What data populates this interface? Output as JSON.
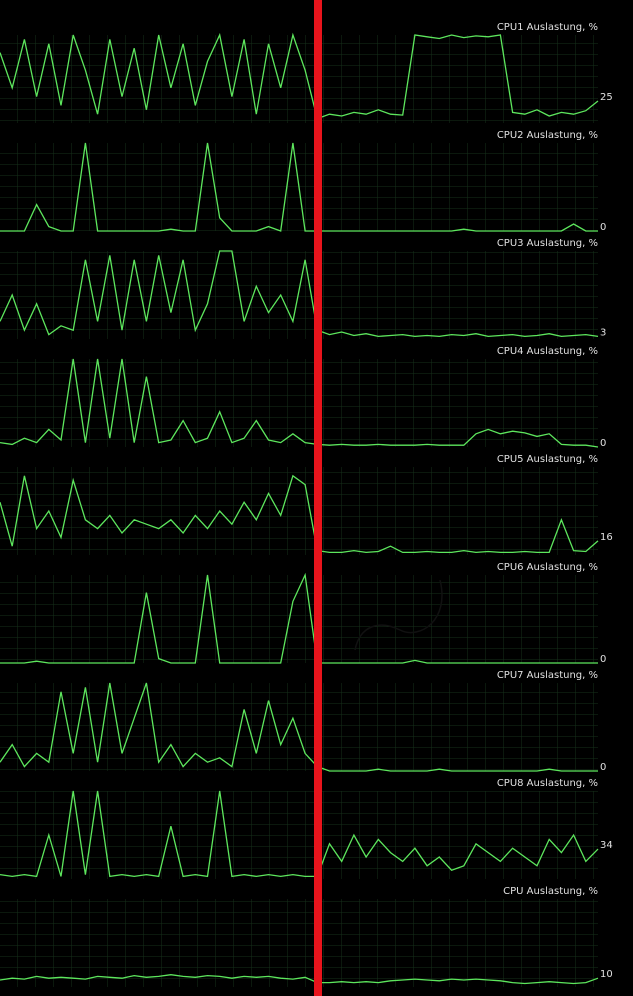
{
  "panels": [
    {
      "title": "CPU1 Auslastung, %",
      "value": 25,
      "trace": [
        80,
        40,
        95,
        30,
        90,
        20,
        100,
        60,
        10,
        95,
        30,
        85,
        15,
        100,
        40,
        90,
        20,
        70,
        100,
        30,
        95,
        10,
        90,
        40,
        100,
        60,
        5,
        10,
        8,
        12,
        10,
        15,
        10,
        9,
        100,
        98,
        96,
        100,
        97,
        99,
        98,
        100,
        12,
        10,
        15,
        8,
        12,
        10,
        14,
        25
      ]
    },
    {
      "title": "CPU2 Auslastung, %",
      "value": 0,
      "trace": [
        0,
        0,
        0,
        30,
        5,
        0,
        0,
        100,
        0,
        0,
        0,
        0,
        0,
        0,
        2,
        0,
        0,
        100,
        15,
        0,
        0,
        0,
        5,
        0,
        100,
        0,
        0,
        0,
        0,
        0,
        0,
        0,
        0,
        0,
        0,
        0,
        0,
        0,
        2,
        0,
        0,
        0,
        0,
        0,
        0,
        0,
        0,
        8,
        0,
        0
      ]
    },
    {
      "title": "CPU3 Auslastung, %",
      "value": 3,
      "trace": [
        20,
        50,
        10,
        40,
        5,
        15,
        10,
        90,
        20,
        95,
        10,
        90,
        20,
        95,
        30,
        90,
        10,
        40,
        100,
        100,
        20,
        60,
        30,
        50,
        20,
        90,
        10,
        5,
        8,
        4,
        6,
        3,
        4,
        5,
        3,
        4,
        3,
        5,
        4,
        6,
        3,
        4,
        5,
        3,
        4,
        6,
        3,
        4,
        5,
        3
      ]
    },
    {
      "title": "CPU4 Auslastung, %",
      "value": 0,
      "trace": [
        5,
        3,
        10,
        5,
        20,
        8,
        100,
        5,
        100,
        10,
        100,
        5,
        80,
        5,
        8,
        30,
        5,
        10,
        40,
        5,
        10,
        30,
        8,
        5,
        15,
        5,
        3,
        2,
        3,
        2,
        2,
        3,
        2,
        2,
        2,
        3,
        2,
        2,
        2,
        15,
        20,
        15,
        18,
        16,
        12,
        15,
        3,
        2,
        2,
        0
      ]
    },
    {
      "title": "CPU5 Auslastung, %",
      "value": 16,
      "trace": [
        60,
        10,
        90,
        30,
        50,
        20,
        85,
        40,
        30,
        45,
        25,
        40,
        35,
        30,
        40,
        25,
        45,
        30,
        50,
        35,
        60,
        40,
        70,
        45,
        90,
        80,
        5,
        3,
        3,
        5,
        3,
        4,
        10,
        3,
        3,
        4,
        3,
        3,
        5,
        3,
        4,
        3,
        3,
        4,
        3,
        3,
        40,
        5,
        4,
        16
      ]
    },
    {
      "title": "CPU6 Auslastung, %",
      "value": 0,
      "trace": [
        0,
        0,
        0,
        2,
        0,
        0,
        0,
        0,
        0,
        0,
        0,
        0,
        80,
        5,
        0,
        0,
        0,
        100,
        0,
        0,
        0,
        0,
        0,
        0,
        70,
        100,
        0,
        0,
        0,
        0,
        0,
        0,
        0,
        0,
        3,
        0,
        0,
        0,
        0,
        0,
        0,
        0,
        0,
        0,
        0,
        0,
        0,
        0,
        0,
        0
      ]
    },
    {
      "title": "CPU7 Auslastung, %",
      "value": 0,
      "trace": [
        10,
        30,
        5,
        20,
        10,
        90,
        20,
        95,
        10,
        100,
        20,
        60,
        100,
        10,
        30,
        5,
        20,
        10,
        15,
        5,
        70,
        20,
        80,
        30,
        60,
        20,
        5,
        0,
        0,
        0,
        0,
        2,
        0,
        0,
        0,
        0,
        2,
        0,
        0,
        0,
        0,
        0,
        0,
        0,
        0,
        2,
        0,
        0,
        0,
        0
      ]
    },
    {
      "title": "CPU8 Auslastung, %",
      "value": 34,
      "trace": [
        5,
        3,
        5,
        3,
        50,
        3,
        100,
        5,
        100,
        3,
        5,
        3,
        5,
        3,
        60,
        3,
        5,
        3,
        100,
        3,
        5,
        3,
        5,
        3,
        5,
        3,
        3,
        40,
        20,
        50,
        25,
        45,
        30,
        20,
        35,
        15,
        25,
        10,
        15,
        40,
        30,
        20,
        35,
        25,
        15,
        45,
        30,
        50,
        20,
        34
      ]
    },
    {
      "title": "CPU Auslastung, %",
      "value": 10,
      "trace": [
        8,
        10,
        9,
        12,
        10,
        11,
        10,
        9,
        12,
        11,
        10,
        13,
        11,
        12,
        14,
        12,
        11,
        13,
        12,
        10,
        12,
        11,
        12,
        10,
        9,
        11,
        5,
        5,
        6,
        5,
        6,
        5,
        7,
        8,
        9,
        8,
        7,
        9,
        8,
        9,
        8,
        7,
        5,
        4,
        5,
        6,
        5,
        4,
        5,
        10
      ]
    }
  ]
}
